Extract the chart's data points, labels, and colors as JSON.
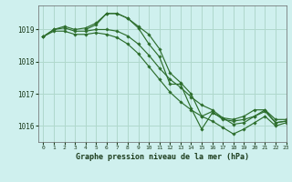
{
  "title": "Graphe pression niveau de la mer (hPa)",
  "background_color": "#cff0ee",
  "grid_color": "#b0d8cc",
  "line_color": "#2d6e2d",
  "xlim": [
    -0.5,
    23
  ],
  "ylim": [
    1015.5,
    1019.75
  ],
  "yticks": [
    1016,
    1017,
    1018,
    1019
  ],
  "xticks": [
    0,
    1,
    2,
    3,
    4,
    5,
    6,
    7,
    8,
    9,
    10,
    11,
    12,
    13,
    14,
    15,
    16,
    17,
    18,
    19,
    20,
    21,
    22,
    23
  ],
  "series": [
    {
      "x": [
        0,
        1,
        2,
        3,
        4,
        5,
        6,
        7,
        8,
        9,
        10,
        11,
        12,
        13,
        14,
        15,
        16,
        17,
        18,
        19,
        20,
        21,
        22,
        23
      ],
      "y": [
        1018.78,
        1019.0,
        1019.1,
        1019.0,
        1019.05,
        1019.2,
        1019.5,
        1019.5,
        1019.35,
        1019.05,
        1018.55,
        1018.15,
        1017.3,
        1017.3,
        1016.55,
        1015.9,
        1016.4,
        1016.25,
        1016.2,
        1016.3,
        1016.5,
        1016.5,
        1016.2,
        1016.2
      ]
    },
    {
      "x": [
        0,
        1,
        2,
        3,
        4,
        5,
        6,
        7,
        8,
        9,
        10,
        11,
        12,
        13,
        14,
        15,
        16,
        17,
        18,
        19,
        20,
        21,
        22,
        23
      ],
      "y": [
        1018.78,
        1019.0,
        1019.05,
        1018.95,
        1018.95,
        1019.0,
        1019.0,
        1018.95,
        1018.8,
        1018.55,
        1018.2,
        1017.8,
        1017.45,
        1017.2,
        1016.9,
        1016.65,
        1016.5,
        1016.25,
        1016.05,
        1016.1,
        1016.3,
        1016.45,
        1016.1,
        1016.15
      ]
    },
    {
      "x": [
        0,
        1,
        2,
        3,
        4,
        5,
        6,
        7,
        8,
        9,
        10,
        11,
        12,
        13,
        14,
        15,
        16,
        17,
        18,
        19,
        20,
        21,
        22,
        23
      ],
      "y": [
        1018.78,
        1018.95,
        1018.95,
        1018.85,
        1018.85,
        1018.9,
        1018.85,
        1018.75,
        1018.55,
        1018.25,
        1017.85,
        1017.45,
        1017.05,
        1016.75,
        1016.5,
        1016.3,
        1016.15,
        1015.95,
        1015.75,
        1015.9,
        1016.1,
        1016.3,
        1016.0,
        1016.1
      ]
    },
    {
      "x": [
        4,
        5,
        6,
        7,
        8,
        9,
        10,
        11,
        12,
        13,
        14,
        15,
        16,
        17,
        18,
        19,
        20,
        21,
        22,
        23
      ],
      "y": [
        1019.0,
        1019.15,
        1019.5,
        1019.5,
        1019.35,
        1019.1,
        1018.85,
        1018.4,
        1017.65,
        1017.35,
        1017.0,
        1016.3,
        1016.45,
        1016.2,
        1016.15,
        1016.2,
        1016.3,
        1016.5,
        1016.1,
        1016.15
      ]
    }
  ]
}
